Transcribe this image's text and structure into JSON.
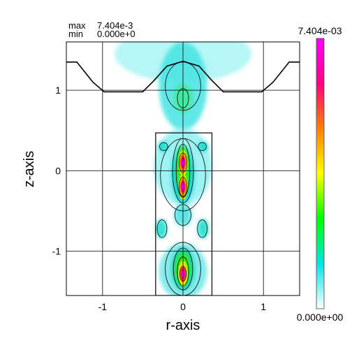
{
  "stats": {
    "max_label": "max",
    "max_value": "7.404e-3",
    "min_label": "min",
    "min_value": "0.000e+0"
  },
  "chart_data": {
    "type": "heatmap",
    "xlabel": "r-axis",
    "ylabel": "z-axis",
    "xlim": [
      -1.45,
      1.45
    ],
    "ylim": [
      -1.55,
      1.6
    ],
    "x_ticks": [
      -1,
      0,
      1
    ],
    "y_ticks": [
      1,
      0,
      -1
    ],
    "x_tick_labels": [
      "-1",
      "0",
      "1"
    ],
    "y_tick_labels": [
      "1",
      "0",
      "-1"
    ],
    "grid": true,
    "colorbar": {
      "max_label": "7.404e-03",
      "min_label": "0.000e+00",
      "max": 0.007404,
      "min": 0.0,
      "colors": [
        "#ffffff",
        "#00e5e5",
        "#00ff00",
        "#ffff00",
        "#ff8000",
        "#ff0080",
        "#ff00ff"
      ]
    },
    "peaks": [
      {
        "r": 0.0,
        "z": 0.1,
        "value": 0.0074
      },
      {
        "r": 0.0,
        "z": -0.2,
        "value": 0.0072
      },
      {
        "r": 0.0,
        "z": -1.28,
        "value": 0.0066
      },
      {
        "r": 0.0,
        "z": 0.9,
        "value": 0.003
      },
      {
        "r": 0.0,
        "z": 1.2,
        "value": 0.002
      }
    ],
    "boundary_profile": [
      [
        -1.45,
        1.35
      ],
      [
        -1.32,
        1.35
      ],
      [
        -1.12,
        1.1
      ],
      [
        -0.98,
        0.98
      ],
      [
        -0.5,
        0.98
      ],
      [
        -0.36,
        1.12
      ],
      [
        -0.2,
        1.3
      ],
      [
        0.0,
        1.36
      ],
      [
        0.2,
        1.3
      ],
      [
        0.36,
        1.12
      ],
      [
        0.5,
        0.98
      ],
      [
        0.98,
        0.98
      ],
      [
        1.12,
        1.1
      ],
      [
        1.32,
        1.35
      ],
      [
        1.45,
        1.35
      ]
    ],
    "inner_rectangle": {
      "r_min": -0.34,
      "r_max": 0.36,
      "z_min": -1.55,
      "z_max": 0.47
    }
  }
}
